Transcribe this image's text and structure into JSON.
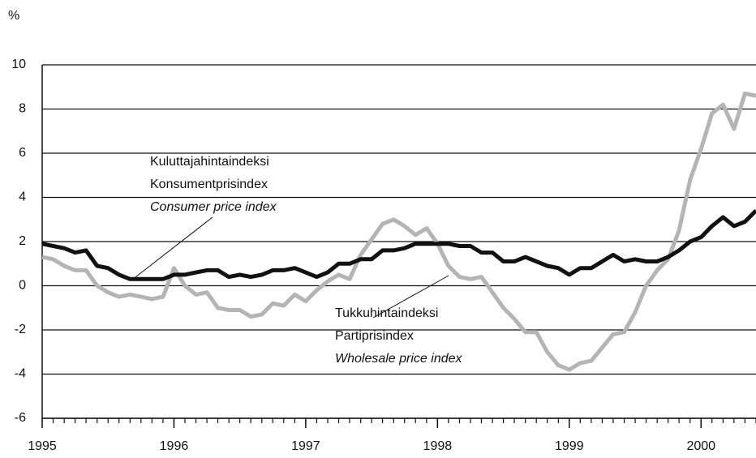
{
  "chart_data": {
    "type": "line",
    "y_unit": "%",
    "x": [
      1995,
      1995.083,
      1995.167,
      1995.25,
      1995.333,
      1995.417,
      1995.5,
      1995.583,
      1995.667,
      1995.75,
      1995.833,
      1995.917,
      1996,
      1996.083,
      1996.167,
      1996.25,
      1996.333,
      1996.417,
      1996.5,
      1996.583,
      1996.667,
      1996.75,
      1996.833,
      1996.917,
      1997,
      1997.083,
      1997.167,
      1997.25,
      1997.333,
      1997.417,
      1997.5,
      1997.583,
      1997.667,
      1997.75,
      1997.833,
      1997.917,
      1998,
      1998.083,
      1998.167,
      1998.25,
      1998.333,
      1998.417,
      1998.5,
      1998.583,
      1998.667,
      1998.75,
      1998.833,
      1998.917,
      1999,
      1999.083,
      1999.167,
      1999.25,
      1999.333,
      1999.417,
      1999.5,
      1999.583,
      1999.667,
      1999.75,
      1999.833,
      1999.917,
      2000,
      2000.083,
      2000.167,
      2000.25,
      2000.333,
      2000.417
    ],
    "series": [
      {
        "name": "Consumer price index",
        "color": "#111111",
        "values": [
          1.9,
          1.8,
          1.7,
          1.5,
          1.6,
          0.9,
          0.8,
          0.5,
          0.3,
          0.3,
          0.3,
          0.3,
          0.5,
          0.5,
          0.6,
          0.7,
          0.7,
          0.4,
          0.5,
          0.4,
          0.5,
          0.7,
          0.7,
          0.8,
          0.6,
          0.4,
          0.6,
          1.0,
          1.0,
          1.2,
          1.2,
          1.6,
          1.6,
          1.7,
          1.9,
          1.9,
          1.9,
          1.9,
          1.8,
          1.8,
          1.5,
          1.5,
          1.1,
          1.1,
          1.3,
          1.1,
          0.9,
          0.8,
          0.5,
          0.8,
          0.8,
          1.1,
          1.4,
          1.1,
          1.2,
          1.1,
          1.1,
          1.3,
          1.6,
          2.0,
          2.2,
          2.7,
          3.1,
          2.7,
          2.9,
          3.4
        ]
      },
      {
        "name": "Wholesale price index",
        "color": "#b4b4b4",
        "values": [
          1.3,
          1.2,
          0.9,
          0.7,
          0.7,
          0.0,
          -0.3,
          -0.5,
          -0.4,
          -0.5,
          -0.6,
          -0.5,
          0.8,
          0.0,
          -0.4,
          -0.3,
          -1.0,
          -1.1,
          -1.1,
          -1.4,
          -1.3,
          -0.8,
          -0.9,
          -0.4,
          -0.7,
          -0.2,
          0.2,
          0.5,
          0.3,
          1.4,
          2.1,
          2.8,
          3.0,
          2.7,
          2.3,
          2.6,
          1.9,
          0.9,
          0.4,
          0.3,
          0.4,
          -0.3,
          -1.0,
          -1.5,
          -2.1,
          -2.1,
          -3.0,
          -3.6,
          -3.8,
          -3.5,
          -3.4,
          -2.8,
          -2.2,
          -2.1,
          -1.2,
          0.0,
          0.7,
          1.2,
          2.5,
          4.8,
          6.2,
          7.8,
          8.2,
          7.1,
          8.7,
          8.6
        ]
      }
    ],
    "annotations": [
      {
        "lines": [
          "Kuluttajahintaindeksi",
          "Konsumentprisindex",
          "Consumer price index"
        ]
      },
      {
        "lines": [
          "Tukkuhintaindeksi",
          "Partiprisindex",
          "Wholesale price index"
        ]
      }
    ],
    "xlim": [
      1995,
      2000.417
    ],
    "xticks": [
      1995,
      1996,
      1997,
      1998,
      1999,
      2000
    ],
    "ylim": [
      -6,
      10
    ],
    "yticks": [
      -6,
      -4,
      -2,
      0,
      2,
      4,
      6,
      8,
      10
    ],
    "grid": true
  }
}
